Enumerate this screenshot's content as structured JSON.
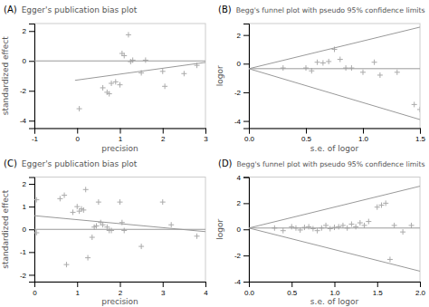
{
  "chart_data": [
    {
      "type": "scatter",
      "annotations": [
        "(A)"
      ],
      "title": "Egger's publication bias plot",
      "xlabel": "precision",
      "ylabel": "standardized effect",
      "xlim": [
        -1,
        3
      ],
      "ylim": [
        -4.5,
        2.5
      ],
      "xticks": [
        -1,
        0,
        1,
        2,
        3
      ],
      "yticks": [
        -4,
        -2,
        0,
        2
      ],
      "grid": false,
      "series": [
        {
          "type": "scatter",
          "marker": "plus",
          "color": "#aaaaaa",
          "x": [
            0.05,
            0.6,
            0.7,
            0.75,
            0.8,
            0.9,
            1.0,
            1.05,
            1.1,
            1.2,
            1.25,
            1.3,
            1.5,
            1.6,
            2.0,
            2.05,
            2.5,
            2.8
          ],
          "values": [
            -3.2,
            -1.8,
            -2.1,
            -2.2,
            -1.5,
            -1.4,
            -1.6,
            0.5,
            0.35,
            1.75,
            -0.05,
            0.05,
            -0.8,
            0.05,
            -0.7,
            -1.7,
            -0.85,
            -0.3
          ]
        },
        {
          "type": "hline",
          "color": "#999999",
          "values": [
            0
          ]
        },
        {
          "type": "line",
          "color": "#999999",
          "x": [
            -0.05,
            3.0
          ],
          "values": [
            -1.3,
            -0.1
          ]
        }
      ]
    },
    {
      "type": "scatter",
      "annotations": [
        "(B)"
      ],
      "title": "Begg's funnel plot with pseudo 95% confidence limits",
      "xlabel": "s.e. of logor",
      "ylabel": "logor",
      "xlim": [
        0,
        1.5
      ],
      "ylim": [
        -4.5,
        2.8
      ],
      "xticks": [
        {
          "value": 0,
          "label": "0.0"
        },
        {
          "value": 0.5,
          "label": "0.5"
        },
        {
          "value": 1,
          "label": "1.0"
        },
        {
          "value": 1.5,
          "label": "1.5"
        }
      ],
      "yticks": [
        -4,
        -2,
        0,
        2
      ],
      "grid": false,
      "series": [
        {
          "type": "scatter",
          "marker": "plus",
          "color": "#aaaaaa",
          "x": [
            0.3,
            0.5,
            0.55,
            0.6,
            0.65,
            0.7,
            0.75,
            0.8,
            0.85,
            0.9,
            1.0,
            1.1,
            1.15,
            1.3,
            1.45,
            1.5
          ],
          "values": [
            -0.3,
            -0.3,
            -0.5,
            0.1,
            0.05,
            0.15,
            1.0,
            0.3,
            -0.3,
            -0.3,
            -0.6,
            0.1,
            -0.8,
            -0.6,
            -2.85,
            -3.2
          ]
        },
        {
          "type": "hline",
          "color": "#999999",
          "values": [
            -0.35
          ]
        },
        {
          "type": "line",
          "color": "#999999",
          "x": [
            0,
            1.5
          ],
          "values": [
            -0.35,
            2.55
          ]
        },
        {
          "type": "line",
          "color": "#999999",
          "x": [
            0,
            1.5
          ],
          "values": [
            -0.35,
            -3.9
          ]
        }
      ]
    },
    {
      "type": "scatter",
      "annotations": [
        "(C)"
      ],
      "title": "Egger's publication bias plot",
      "xlabel": "precision",
      "ylabel": "standardized effect",
      "xlim": [
        0,
        4
      ],
      "ylim": [
        -2.3,
        2.3
      ],
      "xticks": [
        0,
        1,
        2,
        3,
        4
      ],
      "yticks": [
        -2,
        -1,
        0,
        1,
        2
      ],
      "grid": false,
      "series": [
        {
          "type": "scatter",
          "marker": "plus",
          "color": "#aaaaaa",
          "x": [
            0.05,
            0.05,
            0.6,
            0.7,
            0.75,
            0.9,
            1.0,
            1.05,
            1.1,
            1.15,
            1.2,
            1.25,
            1.35,
            1.4,
            1.45,
            1.5,
            1.55,
            1.6,
            1.7,
            1.75,
            1.8,
            2.0,
            2.05,
            2.1,
            2.5,
            3.0,
            3.2,
            3.8
          ],
          "values": [
            1.3,
            -0.15,
            1.35,
            1.5,
            -1.55,
            0.75,
            1.0,
            0.8,
            0.9,
            0.85,
            1.75,
            -1.25,
            -0.35,
            0.1,
            0.15,
            1.2,
            0.3,
            0.2,
            0.1,
            -0.05,
            -0.05,
            1.2,
            0.3,
            -0.05,
            -0.75,
            1.2,
            0.2,
            -0.3
          ]
        },
        {
          "type": "hline",
          "color": "#999999",
          "values": [
            0
          ]
        },
        {
          "type": "line",
          "color": "#999999",
          "x": [
            0,
            4.0
          ],
          "values": [
            0.6,
            -0.1
          ]
        }
      ]
    },
    {
      "type": "scatter",
      "annotations": [
        "(D)"
      ],
      "title": "Begg's funnel plot with pseudo 95% confidence limits",
      "xlabel": "s.e. of logor",
      "ylabel": "logor",
      "xlim": [
        0,
        2
      ],
      "ylim": [
        -4,
        4
      ],
      "xticks": [
        {
          "value": 0,
          "label": "0.0"
        },
        {
          "value": 0.5,
          "label": "0.5"
        },
        {
          "value": 1,
          "label": "1.0"
        },
        {
          "value": 1.5,
          "label": "1.5"
        },
        {
          "value": 2,
          "label": "2.0"
        }
      ],
      "yticks": [
        -4,
        -2,
        0,
        2,
        4
      ],
      "grid": false,
      "series": [
        {
          "type": "scatter",
          "marker": "plus",
          "color": "#aaaaaa",
          "x": [
            0.3,
            0.4,
            0.5,
            0.55,
            0.6,
            0.65,
            0.7,
            0.75,
            0.8,
            0.85,
            0.9,
            0.95,
            1.0,
            1.05,
            1.1,
            1.15,
            1.2,
            1.25,
            1.3,
            1.35,
            1.4,
            1.5,
            1.55,
            1.6,
            1.65,
            1.7,
            1.8,
            1.9
          ],
          "values": [
            0.1,
            -0.1,
            0.2,
            0.1,
            -0.05,
            0.15,
            0.2,
            0.05,
            -0.1,
            0.1,
            0.3,
            0.05,
            0.15,
            0.2,
            0.3,
            0.1,
            0.4,
            0.2,
            0.5,
            0.3,
            0.6,
            1.7,
            1.85,
            2.0,
            -2.3,
            0.3,
            -0.2,
            0.3
          ]
        },
        {
          "type": "hline",
          "color": "#999999",
          "values": [
            0.1
          ]
        },
        {
          "type": "line",
          "color": "#999999",
          "x": [
            0,
            2.0
          ],
          "values": [
            0.1,
            3.3
          ]
        },
        {
          "type": "line",
          "color": "#999999",
          "x": [
            0,
            2.0
          ],
          "values": [
            0.1,
            -3.2
          ]
        }
      ]
    }
  ]
}
